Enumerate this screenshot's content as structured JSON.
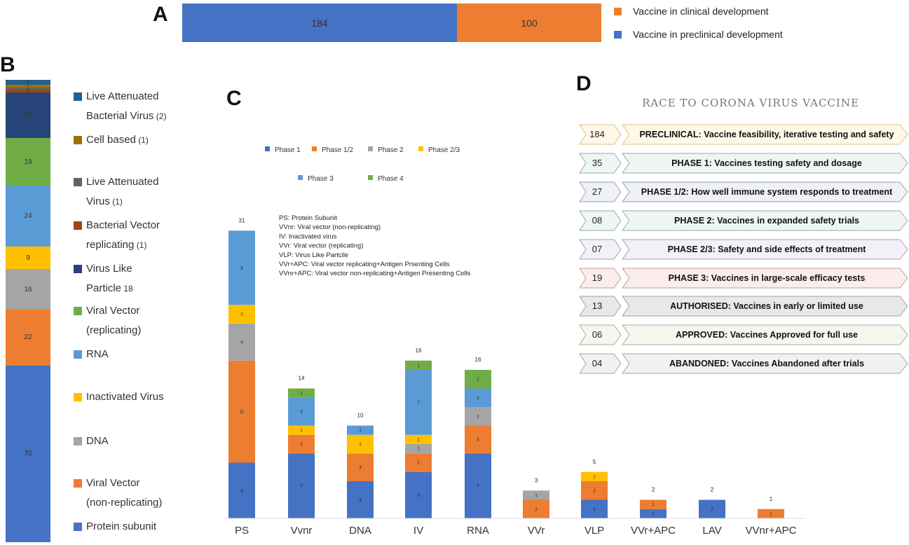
{
  "panel_labels": {
    "a": "A",
    "b": "B",
    "c": "C",
    "d": "D"
  },
  "panel_a": {
    "segments": [
      {
        "label": "184",
        "value": 184,
        "color": "#4472C4"
      },
      {
        "label": "100",
        "value": 100,
        "color": "#ED7D31"
      }
    ],
    "legend": [
      {
        "text": "Vaccine in clinical development",
        "color": "#ED7D31"
      },
      {
        "text": "Vaccine in preclinical development",
        "color": "#4472C4"
      }
    ]
  },
  "panel_b": {
    "segments": [
      {
        "label": "70",
        "value": 70,
        "color": "#4472C4"
      },
      {
        "label": "22",
        "value": 22,
        "color": "#ED7D31"
      },
      {
        "label": "16",
        "value": 16,
        "color": "#A5A5A5"
      },
      {
        "label": "9",
        "value": 9,
        "color": "#FFC000"
      },
      {
        "label": "24",
        "value": 24,
        "color": "#5B9BD5"
      },
      {
        "label": "19",
        "value": 19,
        "color": "#70AD47"
      },
      {
        "label": "18",
        "value": 18,
        "color": "#264478"
      },
      {
        "label": "1",
        "value": 1,
        "color": "#9E480E"
      },
      {
        "label": "1",
        "value": 1,
        "color": "#636363"
      },
      {
        "label": "1",
        "value": 1,
        "color": "#997300"
      },
      {
        "label": "2",
        "value": 2,
        "color": "#255E91"
      }
    ],
    "legend": [
      {
        "line1": "Live Attenuated",
        "line2": "Bacterial Virus",
        "count": "(2)",
        "color": "#255E91"
      },
      {
        "line1": "Cell based",
        "line2": "",
        "count": "(1)",
        "color": "#997300"
      },
      {
        "line1": "Live Attenuated",
        "line2": "Virus",
        "count": "(1)",
        "color": "#636363"
      },
      {
        "line1": "Bacterial Vector",
        "line2": "replicating",
        "count": "(1)",
        "color": "#9E480E"
      },
      {
        "line1": "Virus Like",
        "line2": "Particle",
        "count": "18",
        "color": "#264478"
      },
      {
        "line1": "Viral Vector",
        "line2": "(replicating)",
        "count": "",
        "color": "#70AD47"
      },
      {
        "line1": "RNA",
        "line2": "",
        "count": "",
        "color": "#5B9BD5"
      },
      {
        "line1": "Inactivated Virus",
        "line2": "",
        "count": "",
        "color": "#FFC000"
      },
      {
        "line1": "DNA",
        "line2": "",
        "count": "",
        "color": "#A5A5A5"
      },
      {
        "line1": "Viral Vector",
        "line2": "(non-replicating)",
        "count": "",
        "color": "#ED7D31"
      },
      {
        "line1": "Protein subunit",
        "line2": "",
        "count": "",
        "color": "#4472C4"
      }
    ]
  },
  "chart_data": {
    "type": "bar",
    "stacked": true,
    "categories": [
      "PS",
      "Vvnr",
      "DNA",
      "IV",
      "RNA",
      "VVr",
      "VLP",
      "VVr+APC",
      "LAV",
      "VVnr+APC"
    ],
    "totals": [
      "31",
      "14",
      "10",
      "16",
      "16",
      "3",
      "5",
      "2",
      "2",
      "1"
    ],
    "series": [
      {
        "name": "Phase 1",
        "color": "#4472C4",
        "values": [
          6,
          7,
          4,
          5,
          7,
          0,
          2,
          1,
          2,
          0
        ]
      },
      {
        "name": "Phase 1/2",
        "color": "#ED7D31",
        "values": [
          11,
          2,
          3,
          2,
          3,
          2,
          2,
          1,
          0,
          1
        ]
      },
      {
        "name": "Phase 2",
        "color": "#A5A5A5",
        "values": [
          4,
          0,
          0,
          1,
          2,
          1,
          0,
          0,
          0,
          0
        ]
      },
      {
        "name": "Phase 2/3",
        "color": "#FFC000",
        "values": [
          2,
          1,
          2,
          1,
          0,
          0,
          1,
          0,
          0,
          0
        ]
      },
      {
        "name": "Phase 3",
        "color": "#5B9BD5",
        "values": [
          8,
          3,
          1,
          7,
          2,
          0,
          0,
          0,
          0,
          0
        ]
      },
      {
        "name": "Phase 4",
        "color": "#70AD47",
        "values": [
          0,
          1,
          0,
          1,
          2,
          0,
          0,
          0,
          0,
          0
        ]
      }
    ],
    "abbreviations": [
      "PS: Protein Subunit",
      "VVnr: Viral vector (non-replicating)",
      "IV: Inactivated virus",
      "VVr: Viral vector (replicating)",
      "VLP: Virus Like Partcile",
      "VVr+APC: Viral vector replicating+Antigen Prsenting Cells",
      "VVnr+APC: Viral vector non-replicating+Antigen Presenting Cells"
    ]
  },
  "panel_d": {
    "title": "RACE TO CORONA VIRUS VACCINE",
    "rows": [
      {
        "num": "184",
        "head": "PRECLINICAL:",
        "text": " Vaccine feasibility, iterative testing and safety",
        "fill": "#FFF8E6",
        "stroke": "#D8C08A"
      },
      {
        "num": "35",
        "head": "PHASE 1:",
        "text": " Vaccines testing safety and dosage",
        "fill": "#EEF6F5",
        "stroke": "#9AAAAA"
      },
      {
        "num": "27",
        "head": "PHASE 1/2:",
        "text": " How well immune system responds to treatment",
        "fill": "#EEF2F7",
        "stroke": "#9AA2AE"
      },
      {
        "num": "08",
        "head": "PHASE 2:",
        "text": " Vaccines in expanded safety trials",
        "fill": "#EEF6F3",
        "stroke": "#9AAAA6"
      },
      {
        "num": "07",
        "head": "PHASE 2/3:",
        "text": " Safety and side effects of treatment",
        "fill": "#F3F0F8",
        "stroke": "#A6A0B2"
      },
      {
        "num": "19",
        "head": "PHASE 3:",
        "text": " Vaccines in large-scale efficacy tests",
        "fill": "#FBEDED",
        "stroke": "#C49A9A"
      },
      {
        "num": "13",
        "head": "AUTHORISED:",
        "text": " Vaccines in early or limited use",
        "fill": "#E8E8E8",
        "stroke": "#A0A0A0"
      },
      {
        "num": "06",
        "head": "APPROVED:",
        "text": " Vaccines Approved for full use",
        "fill": "#F3F8EF",
        "stroke": "#A6AEA0"
      },
      {
        "num": "04",
        "head": "ABANDONED:",
        "text": " Vaccines Abandoned after trials",
        "fill": "#F1F1F1",
        "stroke": "#A8A8A8"
      }
    ]
  }
}
